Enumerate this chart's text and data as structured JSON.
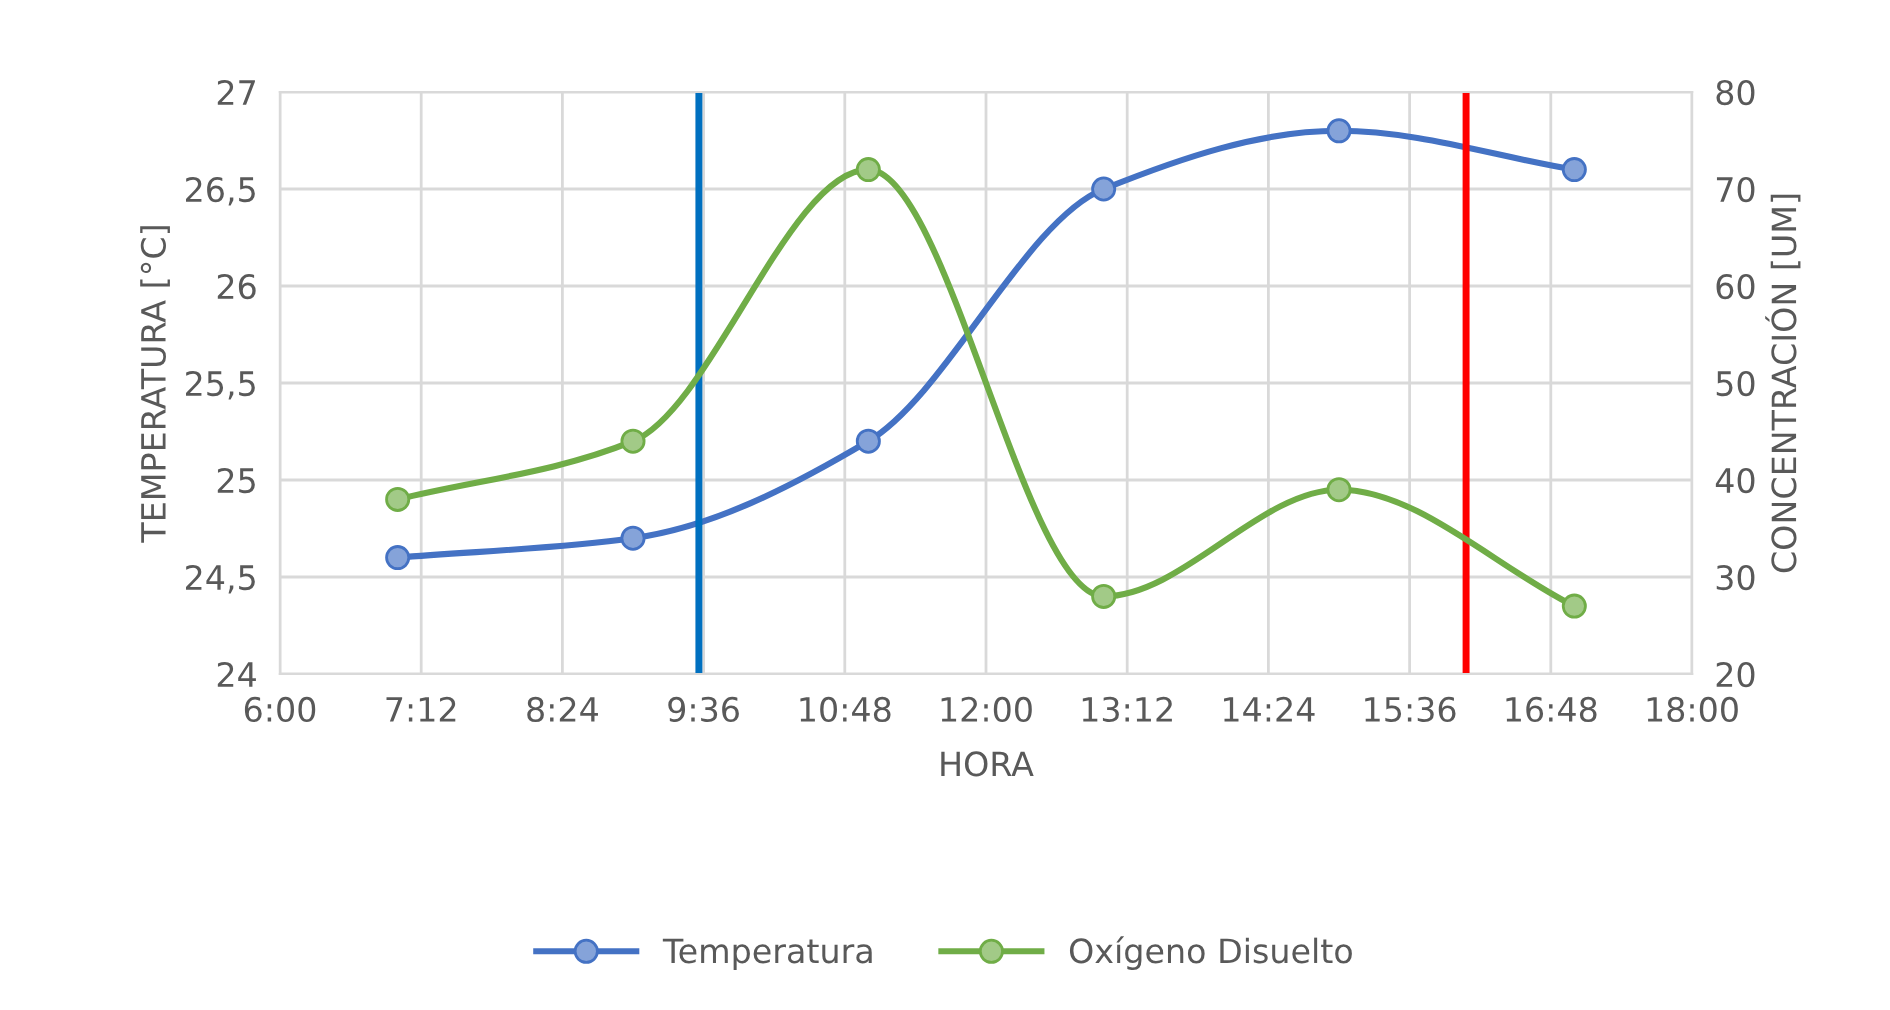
{
  "chart_data": {
    "type": "line",
    "xlabel": "HORA",
    "ylabel": "TEMPERATURA [°C]",
    "y2label": "CONCENTRACIÓN [UM]",
    "x": [
      7,
      9,
      11,
      13,
      15,
      17
    ],
    "series": [
      {
        "name": "Temperatura",
        "color": "#4472c4",
        "values": [
          24.6,
          24.7,
          25.2,
          26.5,
          26.8,
          26.6
        ]
      },
      {
        "name": "Oxígeno Disuelto",
        "color": "#70ad47",
        "axis": "y2",
        "values": [
          38,
          44,
          72,
          28,
          39,
          27
        ]
      }
    ],
    "xlim": [
      6,
      18
    ],
    "xticks": [
      {
        "value": 6,
        "label": "6:00"
      },
      {
        "value": 7.2,
        "label": "7:12"
      },
      {
        "value": 8.4,
        "label": "8:24"
      },
      {
        "value": 9.6,
        "label": "9:36"
      },
      {
        "value": 10.8,
        "label": "10:48"
      },
      {
        "value": 12,
        "label": "12:00"
      },
      {
        "value": 13.2,
        "label": "13:12"
      },
      {
        "value": 14.4,
        "label": "14:24"
      },
      {
        "value": 15.6,
        "label": "15:36"
      },
      {
        "value": 16.8,
        "label": "16:48"
      },
      {
        "value": 18,
        "label": "18:00"
      }
    ],
    "ylim": [
      24,
      27
    ],
    "yticks": [
      {
        "value": 24,
        "label": "24"
      },
      {
        "value": 24.5,
        "label": "24,5"
      },
      {
        "value": 25,
        "label": "25"
      },
      {
        "value": 25.5,
        "label": "25,5"
      },
      {
        "value": 26,
        "label": "26"
      },
      {
        "value": 26.5,
        "label": "26,5"
      },
      {
        "value": 27,
        "label": "27"
      }
    ],
    "y2lim": [
      20,
      80
    ],
    "y2ticks": [
      20,
      30,
      40,
      50,
      60,
      70,
      80
    ],
    "ref_lines": [
      {
        "axis": "x",
        "value": 9.56,
        "color": "#0070c0"
      },
      {
        "axis": "x",
        "value": 16.08,
        "color": "#ff0000"
      }
    ],
    "grid": true,
    "legend": "bottom",
    "marker": "circle",
    "line_style": "solid"
  }
}
